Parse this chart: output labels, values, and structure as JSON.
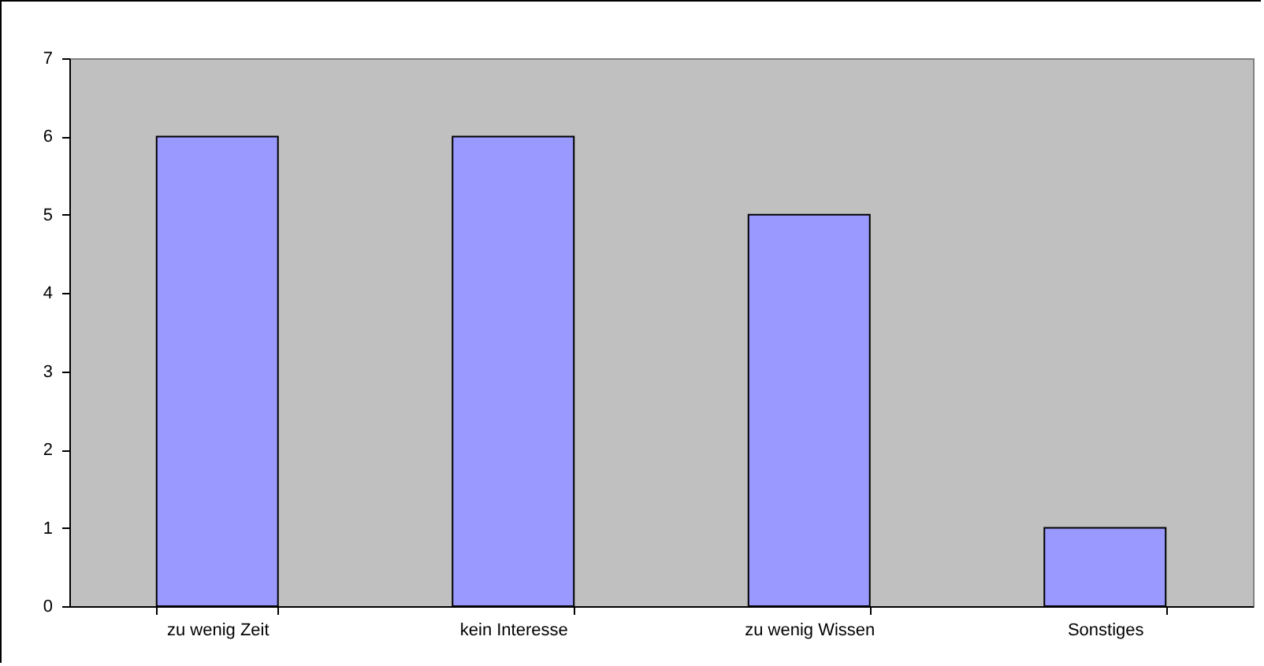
{
  "chart_data": {
    "type": "bar",
    "categories": [
      "zu wenig Zeit",
      "kein Interesse",
      "zu wenig Wissen",
      "Sonstiges"
    ],
    "values": [
      6,
      6,
      5,
      1
    ],
    "color": "#9999ff",
    "ylim": [
      0,
      7
    ],
    "yticks": [
      0,
      1,
      2,
      3,
      4,
      5,
      6,
      7
    ],
    "grid": false
  }
}
